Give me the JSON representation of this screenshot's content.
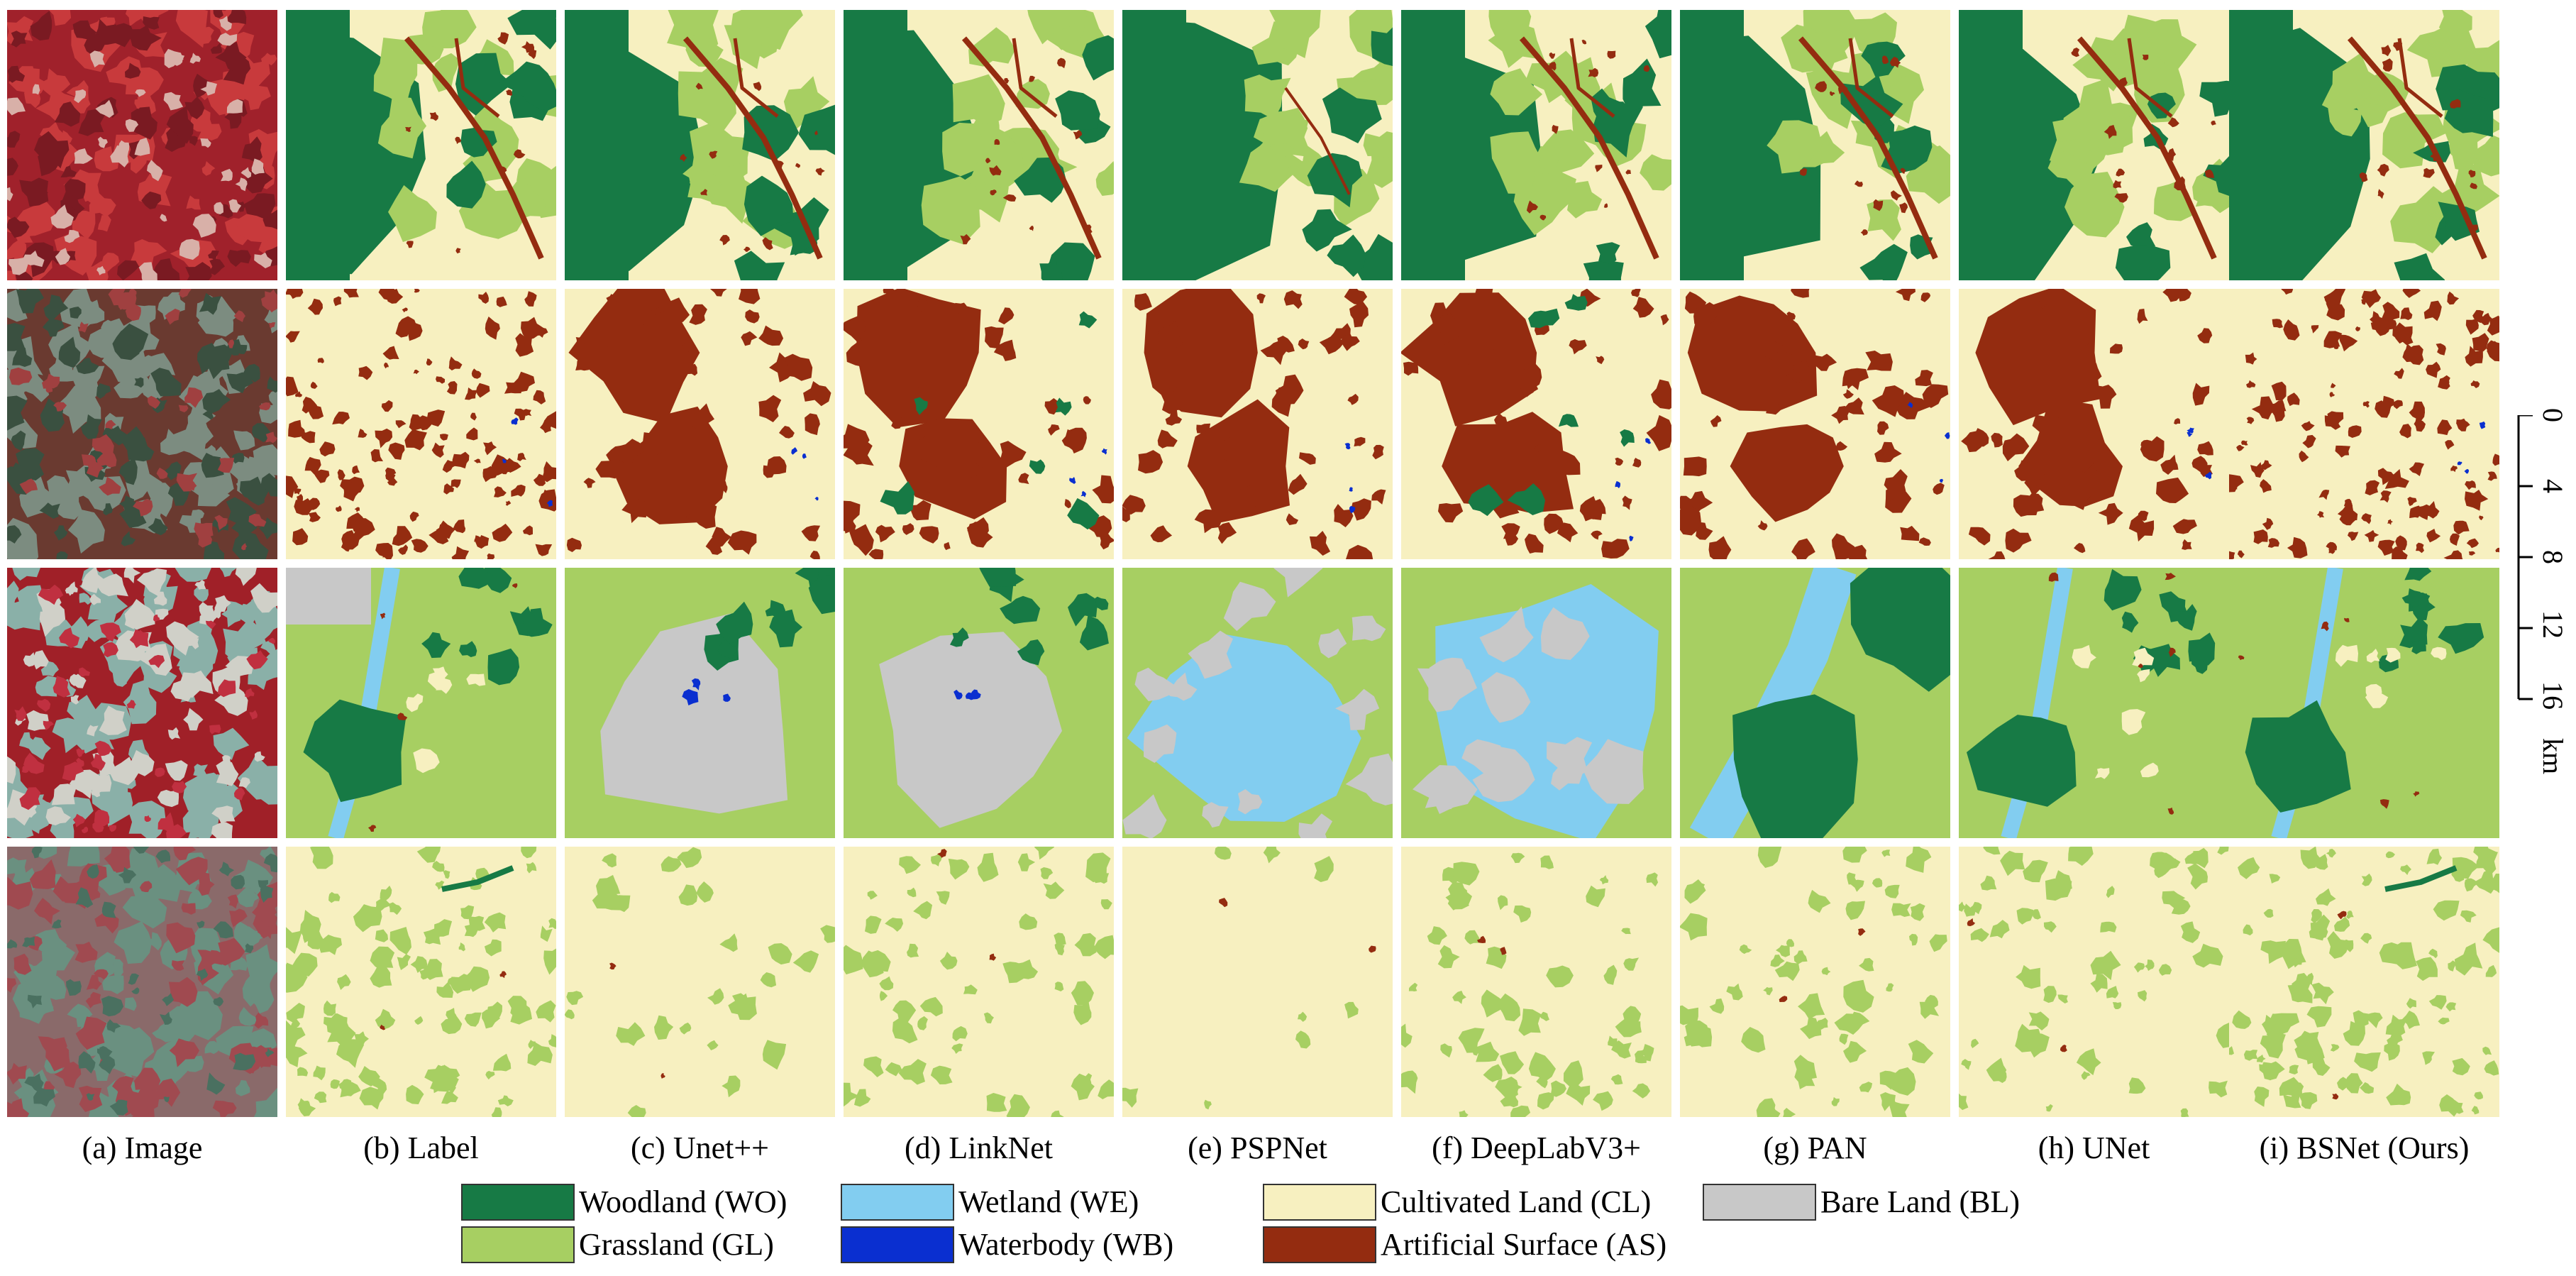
{
  "column_captions": [
    "(a) Image",
    "(b) Label",
    "(c) Unet++",
    "(d) LinkNet",
    "(e) PSPNet",
    "(f) DeepLabV3+",
    "(g) PAN",
    "(h) UNet",
    "(i) BSNet (Ours)"
  ],
  "legend": [
    {
      "label": "Woodland (WO)",
      "color": "#177a45"
    },
    {
      "label": "Wetland (WE)",
      "color": "#82cdf0"
    },
    {
      "label": "Cultivated Land (CL)",
      "color": "#f7f0c0"
    },
    {
      "label": "Bare Land (BL)",
      "color": "#c8c8c8"
    },
    {
      "label": "Grassland (GL)",
      "color": "#a7cf62"
    },
    {
      "label": "Waterbody (WB)",
      "color": "#0a2fd0"
    },
    {
      "label": "Artificial Surface (AS)",
      "color": "#942c10"
    }
  ],
  "scale_bar": {
    "ticks": [
      "0",
      "4",
      "8",
      "12",
      "16"
    ],
    "unit": "km"
  },
  "row_base_classes": [
    "Grassland (GL)",
    "Cultivated Land (CL)",
    "Grassland (GL)",
    "Cultivated Land (CL)"
  ]
}
